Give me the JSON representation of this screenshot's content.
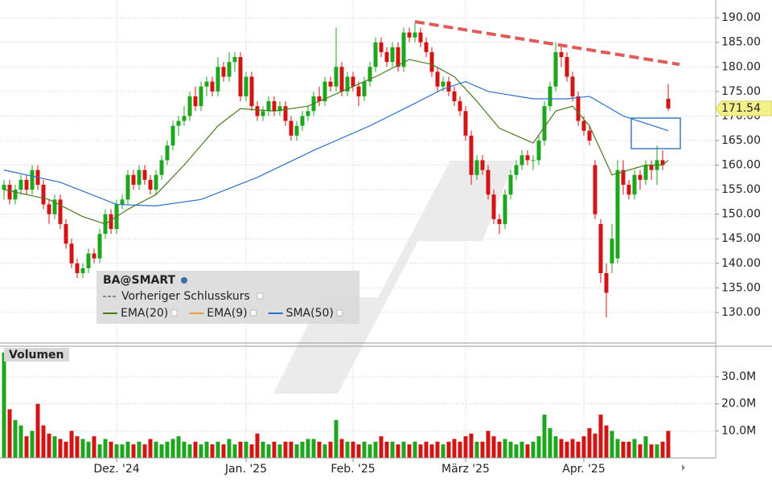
{
  "chart_data": {
    "type": "candlestick",
    "symbol": "BA@SMART",
    "volume_title": "Volumen",
    "up_color": "#1fa61f",
    "down_color": "#d21414",
    "ylim": [
      124.1,
      192.8
    ],
    "yticks": [
      {
        "value": 130,
        "label": "130.00"
      },
      {
        "value": 135,
        "label": "135.00"
      },
      {
        "value": 140,
        "label": "140.00"
      },
      {
        "value": 145,
        "label": "145.00"
      },
      {
        "value": 150,
        "label": "150.00"
      },
      {
        "value": 155,
        "label": "155.00"
      },
      {
        "value": 160,
        "label": "160.00"
      },
      {
        "value": 165,
        "label": "165.00"
      },
      {
        "value": 170,
        "label": "170.00"
      },
      {
        "value": 175,
        "label": "175.00"
      },
      {
        "value": 180,
        "label": "180.00"
      },
      {
        "value": 185,
        "label": "185.00"
      },
      {
        "value": 190,
        "label": "190.00"
      }
    ],
    "volume_ylim": [
      0,
      41
    ],
    "volume_yticks": [
      {
        "value": 10,
        "label": "10.0M"
      },
      {
        "value": 20,
        "label": "20.0M"
      },
      {
        "value": 30,
        "label": "30.0M"
      }
    ],
    "month_ticks": [
      {
        "value": 20,
        "label": "Dez. '24"
      },
      {
        "value": 43,
        "label": "Jan. '25"
      },
      {
        "value": 62,
        "label": "Feb. '25"
      },
      {
        "value": 82,
        "label": "März '25"
      },
      {
        "value": 103,
        "label": "Apr. '25"
      }
    ],
    "grid": true,
    "ohlc": [
      [
        155,
        157,
        153,
        156
      ],
      [
        156,
        157,
        152,
        153
      ],
      [
        153,
        156,
        152,
        155
      ],
      [
        155,
        158,
        154,
        157
      ],
      [
        157,
        158,
        154,
        155
      ],
      [
        155,
        160,
        154,
        159
      ],
      [
        159,
        160,
        155,
        156
      ],
      [
        156,
        157,
        151,
        152
      ],
      [
        152,
        153,
        148,
        150
      ],
      [
        150,
        154,
        149,
        153
      ],
      [
        153,
        154,
        147,
        148
      ],
      [
        148,
        149,
        143,
        144
      ],
      [
        144,
        145,
        139,
        140
      ],
      [
        140,
        141,
        137,
        138
      ],
      [
        138,
        140,
        137,
        139
      ],
      [
        139,
        143,
        138,
        142
      ],
      [
        142,
        143,
        140,
        141
      ],
      [
        141,
        147,
        140,
        146
      ],
      [
        146,
        151,
        145,
        150
      ],
      [
        150,
        151,
        146,
        147
      ],
      [
        147,
        153,
        146,
        152
      ],
      [
        152,
        154,
        151,
        153
      ],
      [
        153,
        159,
        152,
        158
      ],
      [
        158,
        159,
        155,
        156
      ],
      [
        156,
        160,
        155,
        159
      ],
      [
        159,
        160,
        156,
        157
      ],
      [
        157,
        158,
        154,
        155
      ],
      [
        155,
        159,
        154,
        158
      ],
      [
        158,
        162,
        157,
        161
      ],
      [
        161,
        165,
        160,
        164
      ],
      [
        164,
        169,
        163,
        168
      ],
      [
        168,
        170,
        166,
        169
      ],
      [
        169,
        172,
        168,
        170
      ],
      [
        170,
        175,
        169,
        174
      ],
      [
        174,
        176,
        171,
        172
      ],
      [
        172,
        177,
        171,
        176
      ],
      [
        176,
        178,
        174,
        177
      ],
      [
        177,
        178,
        174,
        175
      ],
      [
        175,
        182,
        174,
        180
      ],
      [
        180,
        181,
        177,
        178
      ],
      [
        178,
        183,
        177,
        181
      ],
      [
        181,
        183,
        179,
        182
      ],
      [
        182,
        183,
        173,
        174
      ],
      [
        174,
        179,
        173,
        178
      ],
      [
        178,
        179,
        171,
        172
      ],
      [
        172,
        173,
        169,
        170
      ],
      [
        170,
        172,
        169,
        171
      ],
      [
        171,
        174,
        170,
        173
      ],
      [
        173,
        174,
        170,
        171
      ],
      [
        171,
        173,
        170,
        172
      ],
      [
        172,
        173,
        168,
        169
      ],
      [
        169,
        170,
        165,
        166
      ],
      [
        166,
        169,
        165,
        168
      ],
      [
        168,
        171,
        167,
        170
      ],
      [
        170,
        172,
        169,
        171
      ],
      [
        171,
        175,
        170,
        174
      ],
      [
        174,
        176,
        172,
        173
      ],
      [
        173,
        178,
        172,
        177
      ],
      [
        177,
        178,
        175,
        176
      ],
      [
        176,
        188,
        175,
        180
      ],
      [
        180,
        181,
        174,
        175
      ],
      [
        175,
        179,
        174,
        178
      ],
      [
        178,
        179,
        175,
        176
      ],
      [
        176,
        177,
        172,
        174
      ],
      [
        174,
        178,
        173,
        177
      ],
      [
        177,
        181,
        176,
        180
      ],
      [
        180,
        186,
        179,
        185
      ],
      [
        185,
        186,
        182,
        183
      ],
      [
        183,
        184,
        180,
        181
      ],
      [
        181,
        185,
        180,
        184
      ],
      [
        184,
        185,
        179,
        180
      ],
      [
        180,
        188,
        179,
        187
      ],
      [
        187,
        188,
        185,
        186
      ],
      [
        186,
        189,
        185,
        187
      ],
      [
        187,
        188,
        184,
        185
      ],
      [
        185,
        186,
        182,
        183
      ],
      [
        183,
        184,
        178,
        179
      ],
      [
        179,
        180,
        175,
        176
      ],
      [
        176,
        178,
        175,
        177
      ],
      [
        177,
        178,
        174,
        175
      ],
      [
        175,
        176,
        172,
        173
      ],
      [
        173,
        174,
        170,
        171
      ],
      [
        171,
        172,
        165,
        166
      ],
      [
        166,
        167,
        156,
        158
      ],
      [
        158,
        162,
        157,
        161
      ],
      [
        161,
        162,
        158,
        159
      ],
      [
        159,
        160,
        153,
        154
      ],
      [
        154,
        155,
        148,
        149
      ],
      [
        149,
        150,
        146,
        148
      ],
      [
        148,
        155,
        147,
        154
      ],
      [
        154,
        159,
        153,
        158
      ],
      [
        158,
        161,
        157,
        160
      ],
      [
        160,
        163,
        159,
        162
      ],
      [
        162,
        163,
        160,
        161
      ],
      [
        161,
        162,
        159,
        161
      ],
      [
        161,
        166,
        160,
        165
      ],
      [
        165,
        173,
        164,
        172
      ],
      [
        172,
        177,
        171,
        176
      ],
      [
        176,
        185,
        175,
        183
      ],
      [
        183,
        184,
        180,
        182
      ],
      [
        182,
        183,
        177,
        178
      ],
      [
        178,
        179,
        173,
        174
      ],
      [
        174,
        175,
        168,
        169
      ],
      [
        169,
        170,
        166,
        167
      ],
      [
        167,
        168,
        164,
        165
      ],
      [
        160,
        161,
        149,
        150
      ],
      [
        148,
        149,
        136,
        138
      ],
      [
        138,
        140,
        129,
        134
      ],
      [
        140,
        148,
        138,
        145
      ],
      [
        141,
        161,
        140,
        159
      ],
      [
        159,
        161,
        154,
        156
      ],
      [
        156,
        157,
        153,
        154
      ],
      [
        154,
        159,
        153,
        158
      ],
      [
        158,
        159,
        155,
        157
      ],
      [
        157,
        161,
        156,
        160
      ],
      [
        160,
        161,
        157,
        159
      ],
      [
        159,
        164,
        156,
        161
      ],
      [
        161,
        163,
        159,
        160
      ],
      [
        173.5,
        176.5,
        171,
        171.54
      ]
    ],
    "volume": [
      39,
      18,
      14,
      12,
      8,
      10,
      20,
      12,
      9,
      8,
      7,
      6,
      10,
      8,
      7,
      6,
      8,
      5,
      7,
      6,
      5,
      5,
      6,
      5,
      6,
      5,
      7,
      6,
      5,
      6,
      7,
      8,
      6,
      5,
      6,
      5,
      6,
      5,
      6,
      5,
      7,
      5,
      6,
      6,
      5,
      9,
      6,
      5,
      6,
      5,
      6,
      6,
      5,
      6,
      7,
      7,
      6,
      5,
      6,
      14,
      7,
      6,
      6,
      5,
      6,
      5,
      6,
      8,
      6,
      6,
      5,
      6,
      5,
      6,
      5,
      6,
      5,
      6,
      5,
      6,
      7,
      6,
      8,
      9,
      6,
      6,
      10,
      8,
      6,
      7,
      6,
      5,
      6,
      5,
      6,
      8,
      16,
      11,
      8,
      7,
      6,
      7,
      6,
      8,
      11,
      9,
      16,
      12,
      10,
      7,
      6,
      6,
      7,
      5,
      8,
      5,
      5,
      6,
      10
    ],
    "previous_close_name": "Vorheriger Schlusskurs",
    "lines": [
      {
        "name": "EMA(20)",
        "color": "#4a7a1c",
        "x": [
          0,
          8,
          14,
          18,
          22,
          27,
          32,
          38,
          42,
          48,
          54,
          60,
          66,
          72,
          76,
          80,
          84,
          88,
          94,
          98,
          101,
          104,
          108,
          114,
          117,
          118
        ],
        "values": [
          155,
          153,
          149.5,
          148,
          151,
          154,
          160,
          168,
          171.5,
          171,
          172,
          175,
          178,
          181.5,
          180.5,
          178,
          173,
          167.5,
          164.5,
          171,
          172,
          168,
          158,
          160,
          160,
          161
        ]
      },
      {
        "name": "EMA(9)",
        "color": "#e8a040",
        "x": [],
        "values": []
      },
      {
        "name": "SMA(50)",
        "color": "#2a6fc9",
        "x": [
          0,
          10,
          20,
          27,
          35,
          45,
          55,
          65,
          72,
          78,
          82,
          86,
          94,
          100,
          104,
          110,
          118
        ],
        "values": [
          159,
          156.5,
          152,
          151.7,
          153,
          157.5,
          163,
          168,
          172,
          175.5,
          177,
          175,
          173.5,
          173.5,
          174,
          170,
          167
        ]
      }
    ],
    "trendline": {
      "color": "#e05a5a",
      "x": [
        73,
        120
      ],
      "values": [
        189.2,
        180.5
      ]
    }
  }
}
